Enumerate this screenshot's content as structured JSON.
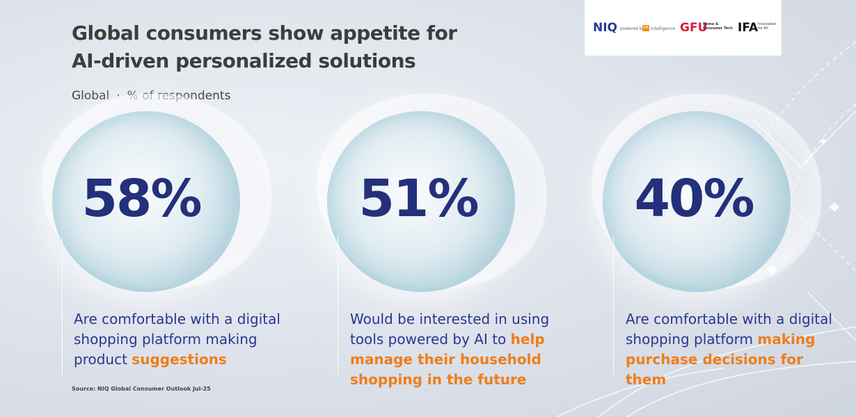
{
  "title_line1": "Global consumers show appetite for",
  "title_line2": "AI-driven personalized solutions",
  "subtitle": {
    "scope": "Global",
    "separator": "·",
    "metric": "% of respondents"
  },
  "logos": {
    "niq": "NIQ",
    "powered_by": "powered by",
    "gfk": "GfK",
    "intelligence": "Intelligence",
    "gfu": "GFU",
    "gfu_sub": "Home & Consumer Tech",
    "ifa": "IFA",
    "ifa_sub": "Innovation for All"
  },
  "stats": [
    {
      "value": "58%",
      "text": "Are comfortable with a digital shopping platform making product",
      "highlight": "suggestions"
    },
    {
      "value": "51%",
      "text": "Would be interested in using tools powered by AI to",
      "highlight": "help manage their household shopping in the future"
    },
    {
      "value": "40%",
      "text": "Are comfortable with a digital shopping platform",
      "highlight": "making purchase decisions for them"
    }
  ],
  "source": "Source: NIQ Global Consumer Outlook Jul-25",
  "colors": {
    "title": "#3d3d3d",
    "number": "#24307a",
    "body_text": "#2a3592",
    "highlight": "#ef7d1a",
    "niq": "#2c3b8f",
    "gfu": "#d4213d",
    "gfk": "#f08a1d"
  }
}
